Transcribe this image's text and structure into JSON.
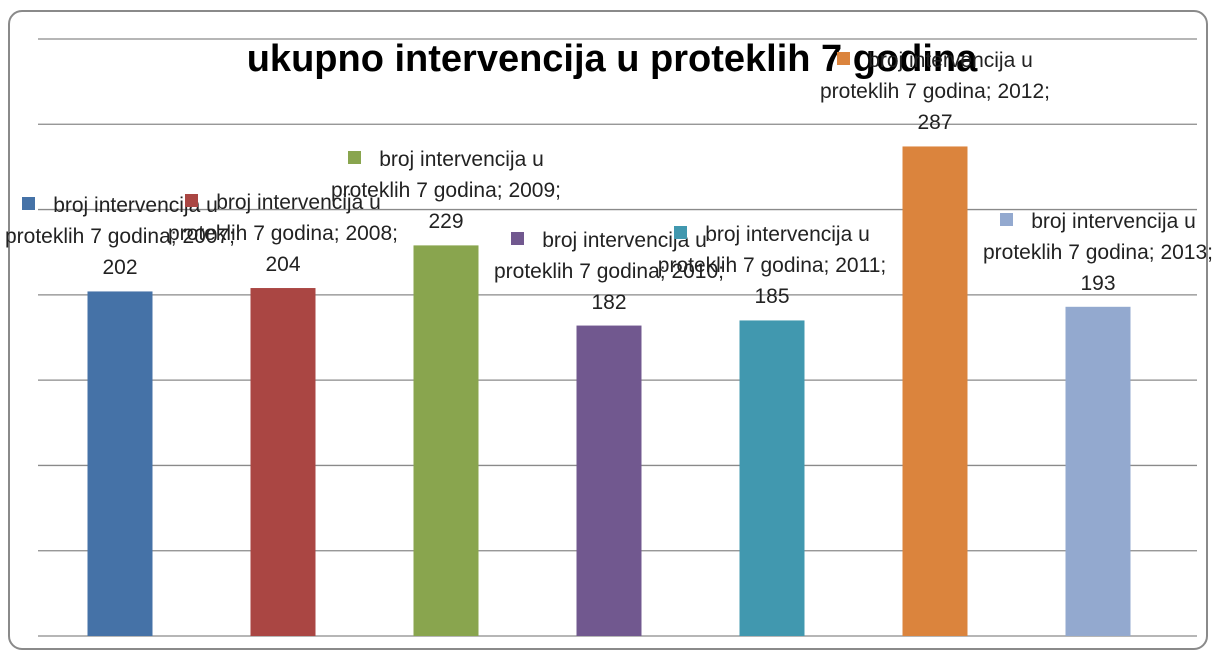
{
  "chart_data": {
    "type": "bar",
    "title": "ukupno intervencija u proteklih 7 godina",
    "values": [
      202,
      204,
      229,
      182,
      185,
      287,
      193
    ],
    "value_labels": [
      "broj intervencija u proteklih 7 godina; 2007; 202",
      "broj intervencija u proteklih 7 godina; 2008; 204",
      "broj intervencija u proteklih 7 godina; 2009; 229",
      "broj intervencija u proteklih 7 godina; 2010; 182",
      "broj intervencija u proteklih 7 godina; 2011; 185",
      "broj intervencija u proteklih 7 godina; 2012; 287",
      "broj intervencija u proteklih 7 godina; 2013; 193"
    ],
    "colors": [
      "#4572a7",
      "#aa4643",
      "#89a54e",
      "#71588f",
      "#4198af",
      "#db843d",
      "#93a9cf"
    ],
    "ylim": [
      0,
      350
    ],
    "yticks": [
      0,
      50,
      100,
      150,
      200,
      250,
      300,
      350
    ],
    "grid": true
  }
}
